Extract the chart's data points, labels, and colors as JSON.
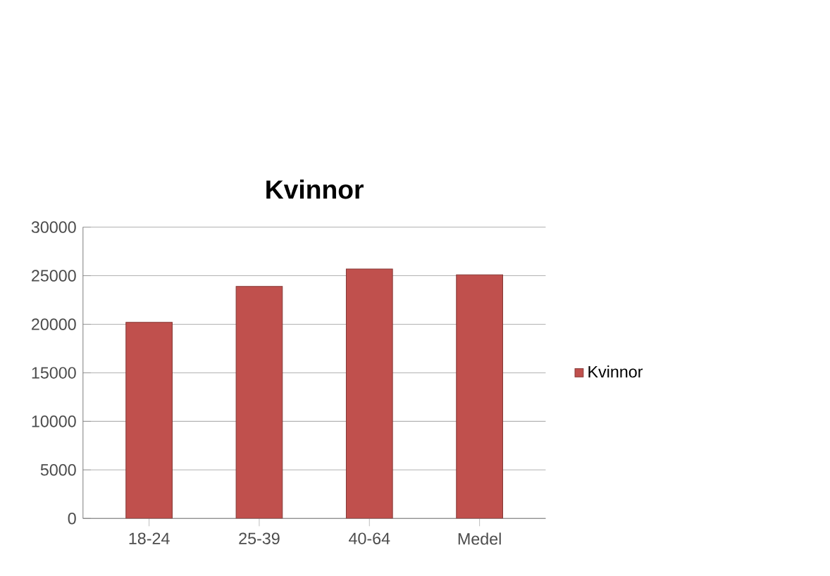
{
  "chart_data": {
    "type": "bar",
    "title": "Kvinnor",
    "categories": [
      "18-24",
      "25-39",
      "40-64",
      "Medel"
    ],
    "series": [
      {
        "name": "Kvinnor",
        "color": "#c0504d",
        "values": [
          20200,
          23900,
          25700,
          25100
        ]
      }
    ],
    "ylim": [
      0,
      30000
    ],
    "yticks": [
      0,
      5000,
      10000,
      15000,
      20000,
      25000,
      30000
    ],
    "grid": "y",
    "legend": "right"
  }
}
